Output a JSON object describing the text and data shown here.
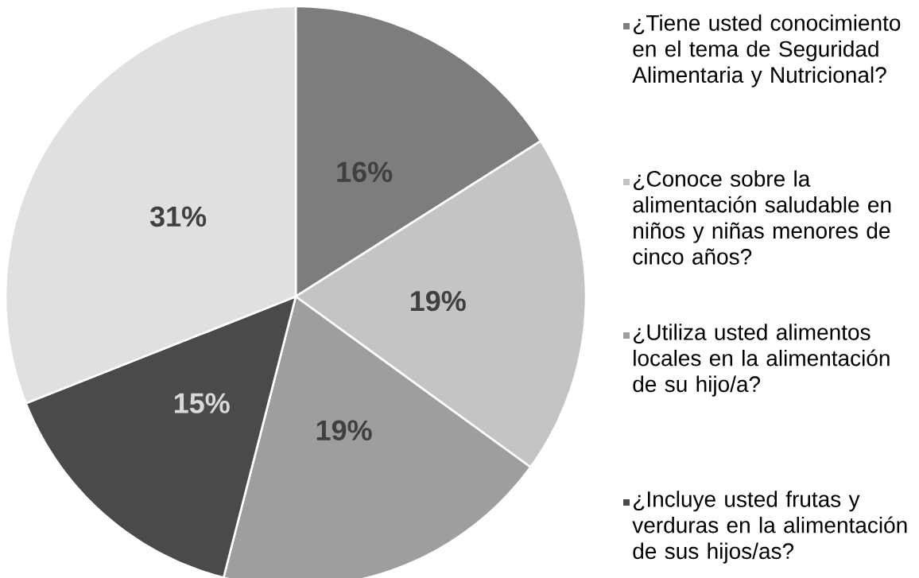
{
  "chart_data": {
    "type": "pie",
    "categories": [
      "¿Tiene usted conocimiento en el tema de Seguridad Alimentaria y Nutricional?",
      "¿Conoce sobre la alimentación saludable en niños y niñas menores de cinco años?",
      "¿Utiliza usted alimentos locales en la alimentación de su hijo/a?",
      "¿Incluye usted frutas y verduras en la alimentación de sus hijos/as?",
      null
    ],
    "values": [
      16,
      19,
      19,
      15,
      31
    ],
    "value_labels": [
      "16%",
      "19%",
      "19%",
      "15%",
      "31%"
    ],
    "colors": [
      "#7d7d7d",
      "#c4c4c4",
      "#9e9e9e",
      "#4a4a4a",
      "#e0e0e0"
    ],
    "legend": "right"
  }
}
